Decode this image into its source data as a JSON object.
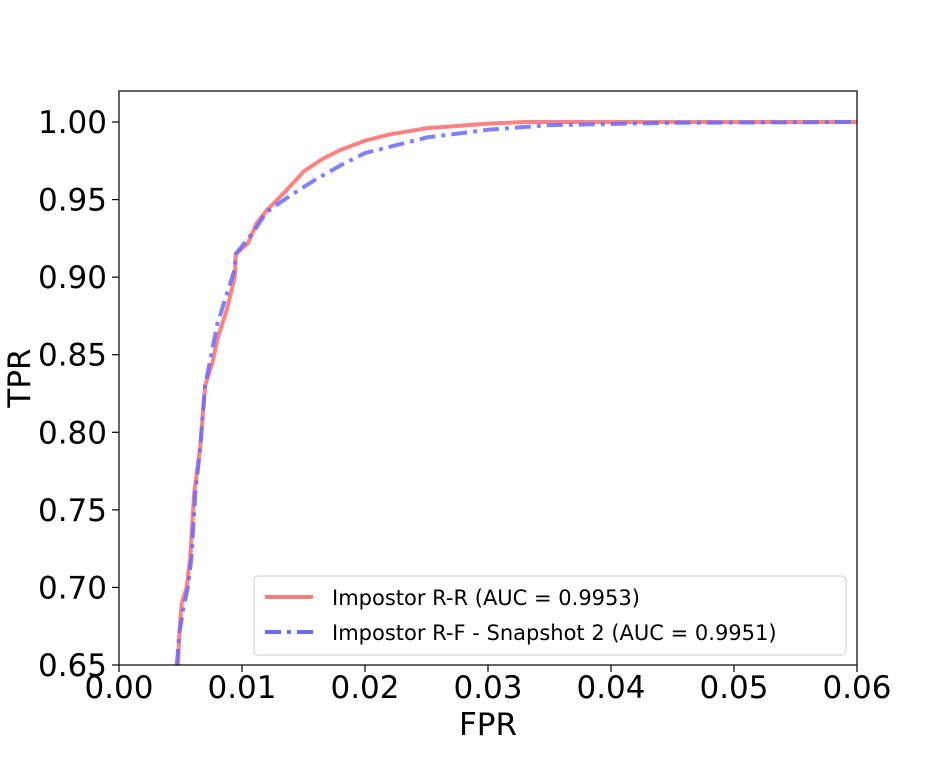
{
  "chart_data": {
    "type": "line",
    "title": "",
    "xlabel": "FPR",
    "ylabel": "TPR",
    "xlim": [
      0.0,
      0.06
    ],
    "ylim": [
      0.65,
      1.02
    ],
    "x_ticks": [
      "0.00",
      "0.01",
      "0.02",
      "0.03",
      "0.04",
      "0.05",
      "0.06"
    ],
    "y_ticks": [
      "0.65",
      "0.70",
      "0.75",
      "0.80",
      "0.85",
      "0.90",
      "0.95",
      "1.00"
    ],
    "grid": false,
    "legend_position": "lower-right",
    "series": [
      {
        "name": "Impostor R-R (AUC = 0.9953)",
        "color": "#ff7b7b",
        "style": "solid",
        "points": [
          [
            0.0048,
            0.65
          ],
          [
            0.0049,
            0.67
          ],
          [
            0.0051,
            0.69
          ],
          [
            0.0055,
            0.7
          ],
          [
            0.0058,
            0.72
          ],
          [
            0.0061,
            0.76
          ],
          [
            0.0066,
            0.79
          ],
          [
            0.007,
            0.83
          ],
          [
            0.0076,
            0.845
          ],
          [
            0.008,
            0.86
          ],
          [
            0.0088,
            0.88
          ],
          [
            0.0094,
            0.9
          ],
          [
            0.0095,
            0.915
          ],
          [
            0.0098,
            0.917
          ],
          [
            0.0105,
            0.922
          ],
          [
            0.0112,
            0.935
          ],
          [
            0.012,
            0.943
          ],
          [
            0.0135,
            0.955
          ],
          [
            0.015,
            0.968
          ],
          [
            0.0165,
            0.976
          ],
          [
            0.018,
            0.982
          ],
          [
            0.02,
            0.988
          ],
          [
            0.022,
            0.992
          ],
          [
            0.025,
            0.996
          ],
          [
            0.03,
            0.999
          ],
          [
            0.033,
            1.0
          ],
          [
            0.06,
            1.0
          ]
        ]
      },
      {
        "name": "Impostor R-F - Snapshot 2 (AUC = 0.9951)",
        "color": "#6b6bff",
        "style": "dashdot",
        "points": [
          [
            0.0047,
            0.65
          ],
          [
            0.0049,
            0.67
          ],
          [
            0.0052,
            0.685
          ],
          [
            0.0056,
            0.7
          ],
          [
            0.0059,
            0.72
          ],
          [
            0.0062,
            0.76
          ],
          [
            0.0066,
            0.79
          ],
          [
            0.007,
            0.83
          ],
          [
            0.0075,
            0.85
          ],
          [
            0.008,
            0.87
          ],
          [
            0.0088,
            0.89
          ],
          [
            0.0094,
            0.905
          ],
          [
            0.0095,
            0.915
          ],
          [
            0.01,
            0.92
          ],
          [
            0.011,
            0.93
          ],
          [
            0.012,
            0.942
          ],
          [
            0.014,
            0.953
          ],
          [
            0.016,
            0.963
          ],
          [
            0.018,
            0.972
          ],
          [
            0.02,
            0.98
          ],
          [
            0.025,
            0.99
          ],
          [
            0.03,
            0.995
          ],
          [
            0.035,
            0.998
          ],
          [
            0.045,
            0.9995
          ],
          [
            0.06,
            1.0
          ]
        ]
      }
    ]
  }
}
